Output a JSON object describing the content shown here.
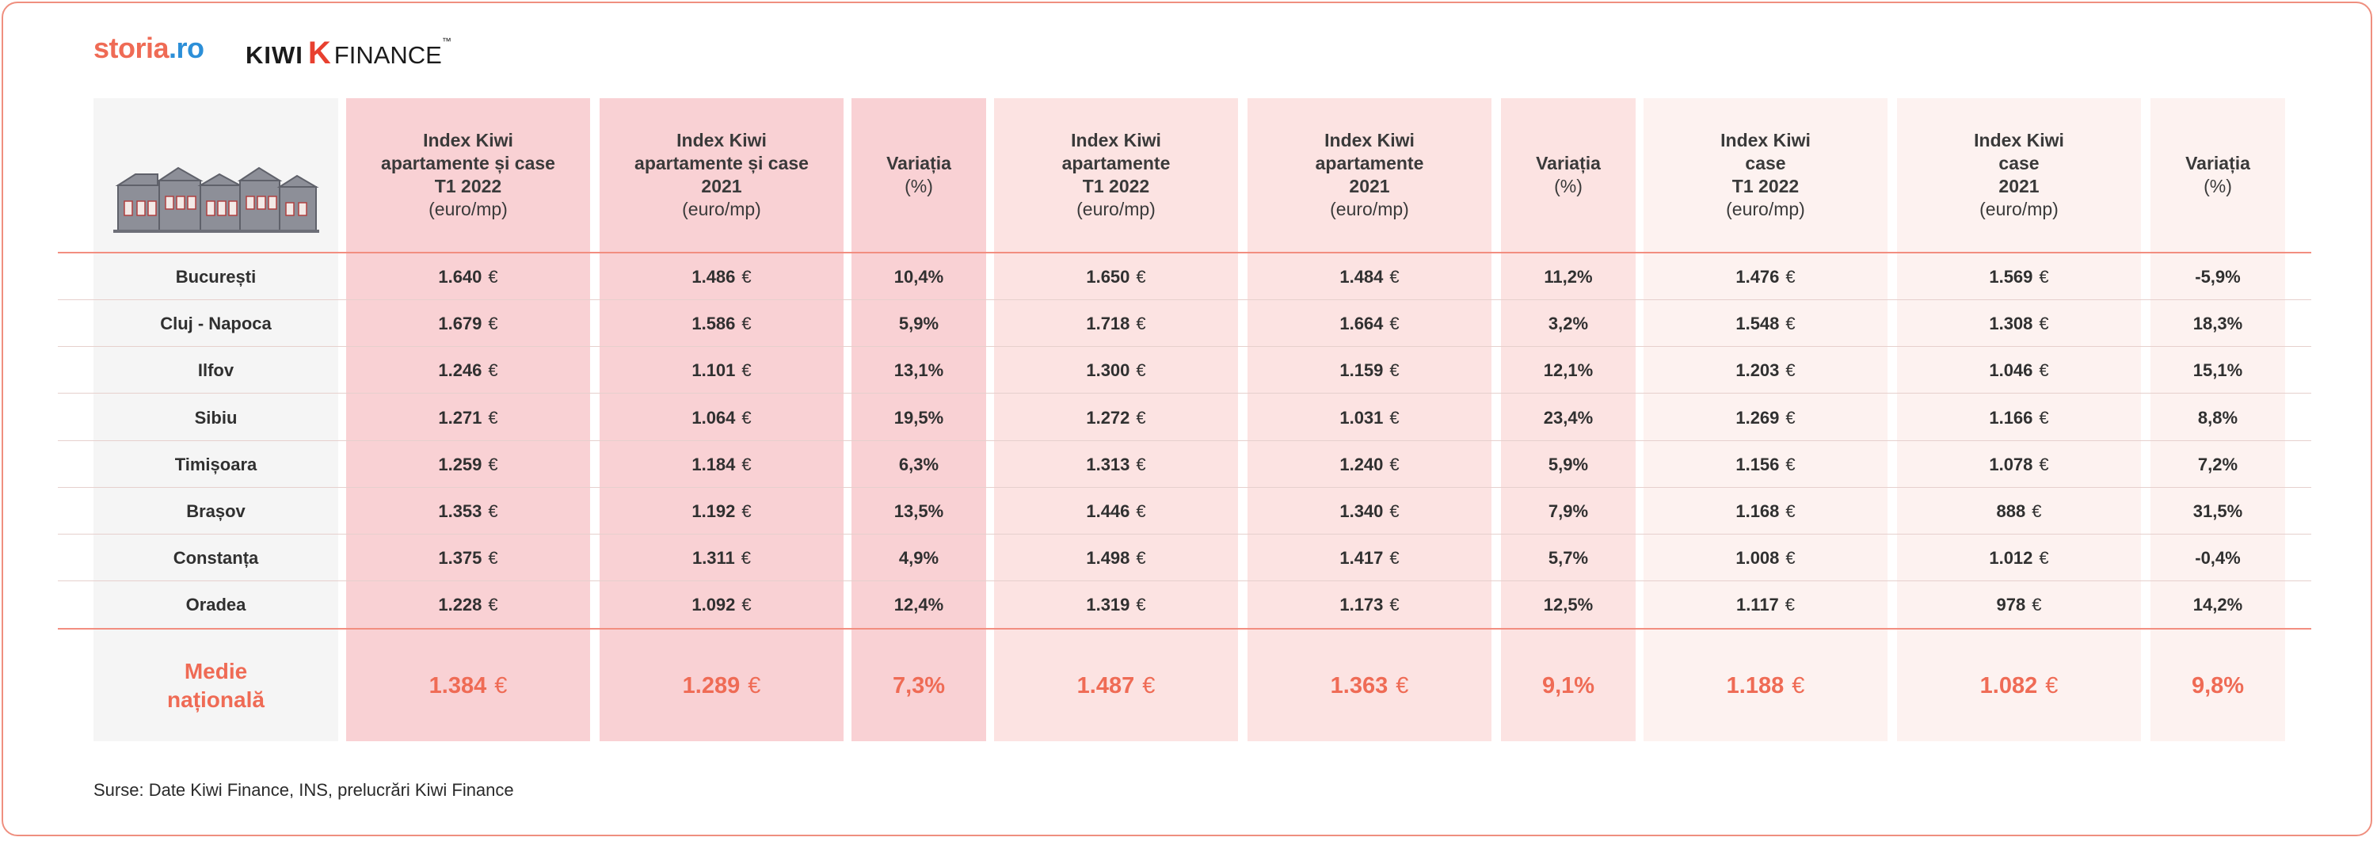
{
  "brand": {
    "storia_a": "storia",
    "storia_b": ".ro",
    "kiwi_word": "KIWI",
    "kiwi_k": "K",
    "finance_word": "FINANCE",
    "tm": "™"
  },
  "headers": [
    {
      "lines": [
        "Index Kiwi",
        "apartamente și case",
        "T1 2022"
      ],
      "unit": "(euro/mp)"
    },
    {
      "lines": [
        "Index Kiwi",
        "apartamente și case",
        "2021"
      ],
      "unit": "(euro/mp)"
    },
    {
      "lines": [
        "Variația"
      ],
      "unit": "(%)"
    },
    {
      "lines": [
        "Index Kiwi",
        "apartamente",
        "T1 2022"
      ],
      "unit": "(euro/mp)"
    },
    {
      "lines": [
        "Index Kiwi",
        "apartamente",
        "2021"
      ],
      "unit": "(euro/mp)"
    },
    {
      "lines": [
        "Variația"
      ],
      "unit": "(%)"
    },
    {
      "lines": [
        "Index Kiwi",
        "case",
        "T1 2022"
      ],
      "unit": "(euro/mp)"
    },
    {
      "lines": [
        "Index Kiwi",
        "case",
        "2021"
      ],
      "unit": "(euro/mp)"
    },
    {
      "lines": [
        "Variația"
      ],
      "unit": "(%)"
    }
  ],
  "currency": "€",
  "rows": [
    {
      "city": "București",
      "values": [
        "1.640",
        "1.486",
        "10,4%",
        "1.650",
        "1.484",
        "11,2%",
        "1.476",
        "1.569",
        "-5,9%"
      ]
    },
    {
      "city": "Cluj - Napoca",
      "values": [
        "1.679",
        "1.586",
        "5,9%",
        "1.718",
        "1.664",
        "3,2%",
        "1.548",
        "1.308",
        "18,3%"
      ]
    },
    {
      "city": "Ilfov",
      "values": [
        "1.246",
        "1.101",
        "13,1%",
        "1.300",
        "1.159",
        "12,1%",
        "1.203",
        "1.046",
        "15,1%"
      ]
    },
    {
      "city": "Sibiu",
      "values": [
        "1.271",
        "1.064",
        "19,5%",
        "1.272",
        "1.031",
        "23,4%",
        "1.269",
        "1.166",
        "8,8%"
      ]
    },
    {
      "city": "Timișoara",
      "values": [
        "1.259",
        "1.184",
        "6,3%",
        "1.313",
        "1.240",
        "5,9%",
        "1.156",
        "1.078",
        "7,2%"
      ]
    },
    {
      "city": "Brașov",
      "values": [
        "1.353",
        "1.192",
        "13,5%",
        "1.446",
        "1.340",
        "7,9%",
        "1.168",
        "888",
        "31,5%"
      ]
    },
    {
      "city": "Constanța",
      "values": [
        "1.375",
        "1.311",
        "4,9%",
        "1.498",
        "1.417",
        "5,7%",
        "1.008",
        "1.012",
        "-0,4%"
      ]
    },
    {
      "city": "Oradea",
      "values": [
        "1.228",
        "1.092",
        "12,4%",
        "1.319",
        "1.173",
        "12,5%",
        "1.117",
        "978",
        "14,2%"
      ]
    }
  ],
  "national": {
    "label_line1": "Medie",
    "label_line2": "națională",
    "values": [
      "1.384",
      "1.289",
      "7,3%",
      "1.487",
      "1.363",
      "9,1%",
      "1.188",
      "1.082",
      "9,8%"
    ]
  },
  "source": "Surse: Date Kiwi Finance, INS, prelucrări Kiwi Finance",
  "colors": {
    "accent": "#ef6b55",
    "pink_dark": "#f9d1d4",
    "pink_mid": "#fce3e2",
    "pink_light": "#fdf2f0",
    "storia_dot": "#2c8fd8",
    "kiwi_k": "#e8402f"
  }
}
